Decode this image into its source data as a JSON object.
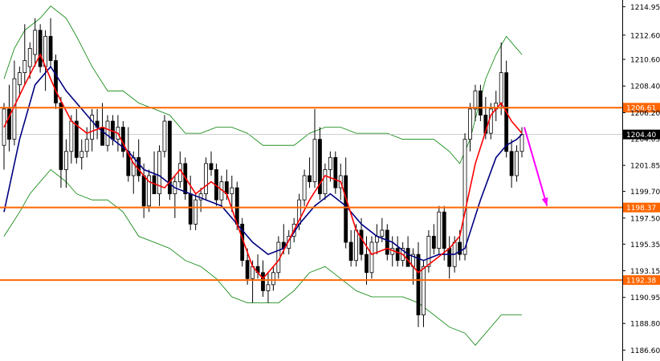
{
  "chart_data": {
    "type": "candlestick",
    "y_axis": {
      "position": "right",
      "ylim": [
        1185.7,
        1215.5
      ],
      "ticks": [
        1214.95,
        1212.6,
        1210.6,
        1208.4,
        1206.2,
        1204.05,
        1201.85,
        1199.7,
        1197.5,
        1195.35,
        1193.15,
        1190.95,
        1188.8,
        1186.6
      ],
      "tick_labels": [
        "1214.95",
        "1212.60",
        "1210.60",
        "1208.40",
        "1206.20",
        "1204.05",
        "1201.85",
        "1199.70",
        "1197.50",
        "1195.35",
        "1193.15",
        "1190.95",
        "1188.80",
        "1186.60"
      ]
    },
    "levels": [
      {
        "value": 1206.61,
        "label": "1206.61",
        "color": "#ff6600"
      },
      {
        "value": 1198.37,
        "label": "1198.37",
        "color": "#ff6600"
      },
      {
        "value": 1192.38,
        "label": "1192.38",
        "color": "#ff6600"
      }
    ],
    "current_price": {
      "value": 1204.4,
      "label": "1204.40",
      "line_color": "#c0c0c0",
      "box_color": "#000000"
    },
    "grid": false,
    "colors": {
      "bull": "#ffffff",
      "bear": "#000000",
      "outline": "#000000",
      "fast_ma": "#ff0000",
      "slow_ma": "#000080",
      "bands": "#008000",
      "arrow": "#ff00ff"
    },
    "candles": [
      [
        1203.5,
        1207.0,
        1201.5,
        1206.5
      ],
      [
        1206.5,
        1208.5,
        1203.0,
        1204.0
      ],
      [
        1204.0,
        1210.5,
        1203.5,
        1209.0
      ],
      [
        1208.5,
        1210.0,
        1207.5,
        1209.5
      ],
      [
        1209.5,
        1213.5,
        1208.5,
        1210.5
      ],
      [
        1210.0,
        1212.0,
        1209.0,
        1211.5
      ],
      [
        1211.0,
        1214.0,
        1210.0,
        1213.0
      ],
      [
        1213.0,
        1213.5,
        1209.5,
        1210.0
      ],
      [
        1210.0,
        1213.0,
        1208.0,
        1212.5
      ],
      [
        1212.5,
        1214.0,
        1210.0,
        1210.5
      ],
      [
        1210.5,
        1211.0,
        1206.5,
        1207.0
      ],
      [
        1207.0,
        1207.5,
        1200.0,
        1201.5
      ],
      [
        1201.5,
        1204.0,
        1200.0,
        1203.0
      ],
      [
        1203.0,
        1206.0,
        1202.0,
        1205.5
      ],
      [
        1205.5,
        1206.5,
        1202.0,
        1202.5
      ],
      [
        1202.5,
        1204.0,
        1201.5,
        1203.0
      ],
      [
        1203.0,
        1205.0,
        1202.5,
        1204.0
      ],
      [
        1204.0,
        1206.5,
        1203.0,
        1206.0
      ],
      [
        1205.5,
        1206.5,
        1204.0,
        1205.0
      ],
      [
        1205.0,
        1207.0,
        1203.5,
        1203.5
      ],
      [
        1203.5,
        1206.0,
        1203.0,
        1205.5
      ],
      [
        1205.5,
        1206.0,
        1203.5,
        1204.0
      ],
      [
        1204.0,
        1206.0,
        1203.0,
        1205.0
      ],
      [
        1205.0,
        1205.5,
        1202.5,
        1203.0
      ],
      [
        1203.0,
        1205.0,
        1200.5,
        1201.0
      ],
      [
        1201.0,
        1203.0,
        1199.5,
        1202.5
      ],
      [
        1202.5,
        1204.0,
        1200.5,
        1201.0
      ],
      [
        1201.0,
        1202.0,
        1197.5,
        1198.5
      ],
      [
        1198.5,
        1201.5,
        1198.0,
        1201.0
      ],
      [
        1201.0,
        1203.0,
        1199.5,
        1199.5
      ],
      [
        1199.5,
        1203.5,
        1198.5,
        1203.0
      ],
      [
        1203.0,
        1206.0,
        1202.5,
        1205.5
      ],
      [
        1205.5,
        1205.5,
        1199.0,
        1199.5
      ],
      [
        1199.5,
        1201.0,
        1197.5,
        1200.5
      ],
      [
        1200.5,
        1203.0,
        1200.0,
        1202.0
      ],
      [
        1202.0,
        1202.5,
        1199.0,
        1199.5
      ],
      [
        1199.5,
        1201.0,
        1196.5,
        1197.0
      ],
      [
        1197.0,
        1199.5,
        1196.5,
        1199.0
      ],
      [
        1199.0,
        1200.0,
        1198.0,
        1199.5
      ],
      [
        1199.5,
        1202.5,
        1199.0,
        1202.0
      ],
      [
        1202.0,
        1203.0,
        1201.0,
        1201.5
      ],
      [
        1201.5,
        1202.0,
        1198.5,
        1199.0
      ],
      [
        1199.0,
        1201.0,
        1198.5,
        1200.5
      ],
      [
        1200.5,
        1201.5,
        1199.0,
        1199.5
      ],
      [
        1199.5,
        1201.0,
        1198.0,
        1200.0
      ],
      [
        1200.0,
        1200.5,
        1196.5,
        1197.0
      ],
      [
        1197.0,
        1197.5,
        1193.5,
        1194.0
      ],
      [
        1194.0,
        1195.0,
        1192.0,
        1192.5
      ],
      [
        1192.5,
        1194.0,
        1190.5,
        1193.5
      ],
      [
        1193.5,
        1194.5,
        1192.5,
        1193.0
      ],
      [
        1193.0,
        1194.0,
        1191.0,
        1191.5
      ],
      [
        1191.5,
        1193.0,
        1190.5,
        1192.0
      ],
      [
        1192.0,
        1193.5,
        1191.5,
        1193.0
      ],
      [
        1193.0,
        1196.0,
        1192.5,
        1195.5
      ],
      [
        1195.5,
        1197.0,
        1194.5,
        1195.0
      ],
      [
        1195.0,
        1196.5,
        1194.5,
        1196.0
      ],
      [
        1196.0,
        1197.5,
        1195.5,
        1197.0
      ],
      [
        1197.0,
        1199.5,
        1196.5,
        1199.0
      ],
      [
        1199.0,
        1201.5,
        1198.5,
        1201.0
      ],
      [
        1201.0,
        1202.5,
        1200.0,
        1200.5
      ],
      [
        1200.5,
        1206.5,
        1200.0,
        1204.0
      ],
      [
        1204.0,
        1205.0,
        1199.0,
        1199.5
      ],
      [
        1199.5,
        1202.0,
        1199.0,
        1201.5
      ],
      [
        1201.5,
        1203.0,
        1200.5,
        1202.5
      ],
      [
        1202.5,
        1203.0,
        1199.5,
        1200.0
      ],
      [
        1200.0,
        1202.0,
        1199.0,
        1201.0
      ],
      [
        1201.0,
        1202.5,
        1195.0,
        1195.5
      ],
      [
        1195.5,
        1196.5,
        1193.5,
        1194.0
      ],
      [
        1194.0,
        1197.0,
        1193.5,
        1196.5
      ],
      [
        1196.5,
        1197.5,
        1194.0,
        1194.5
      ],
      [
        1194.5,
        1196.0,
        1192.0,
        1193.0
      ],
      [
        1193.0,
        1196.0,
        1192.5,
        1195.5
      ],
      [
        1195.5,
        1197.0,
        1194.5,
        1196.0
      ],
      [
        1196.0,
        1197.5,
        1195.5,
        1196.5
      ],
      [
        1196.5,
        1197.0,
        1194.0,
        1194.5
      ],
      [
        1194.5,
        1196.0,
        1193.5,
        1195.0
      ],
      [
        1195.0,
        1196.0,
        1193.5,
        1194.0
      ],
      [
        1194.0,
        1195.5,
        1193.5,
        1195.0
      ],
      [
        1195.0,
        1196.0,
        1193.5,
        1193.5
      ],
      [
        1193.5,
        1195.0,
        1192.0,
        1194.5
      ],
      [
        1194.5,
        1195.5,
        1188.5,
        1189.5
      ],
      [
        1189.5,
        1194.0,
        1188.5,
        1193.5
      ],
      [
        1193.5,
        1196.5,
        1193.0,
        1196.0
      ],
      [
        1196.0,
        1197.0,
        1194.5,
        1195.0
      ],
      [
        1195.0,
        1198.5,
        1194.5,
        1198.0
      ],
      [
        1198.0,
        1198.5,
        1194.0,
        1195.0
      ],
      [
        1195.0,
        1196.0,
        1192.5,
        1193.5
      ],
      [
        1193.5,
        1196.0,
        1193.0,
        1195.5
      ],
      [
        1195.5,
        1196.5,
        1194.0,
        1194.5
      ],
      [
        1194.5,
        1204.5,
        1194.0,
        1204.0
      ],
      [
        1204.0,
        1207.0,
        1203.0,
        1206.5
      ],
      [
        1206.5,
        1208.5,
        1205.5,
        1208.0
      ],
      [
        1208.0,
        1208.5,
        1205.5,
        1206.0
      ],
      [
        1206.0,
        1207.5,
        1204.0,
        1204.5
      ],
      [
        1204.5,
        1207.0,
        1204.0,
        1206.5
      ],
      [
        1206.5,
        1208.0,
        1205.5,
        1207.0
      ],
      [
        1207.0,
        1212.0,
        1206.0,
        1209.5
      ],
      [
        1209.5,
        1210.5,
        1202.5,
        1203.0
      ],
      [
        1203.0,
        1204.0,
        1200.0,
        1201.0
      ],
      [
        1201.0,
        1203.5,
        1200.5,
        1203.0
      ],
      [
        1203.0,
        1205.0,
        1202.5,
        1204.4
      ]
    ],
    "fast_ma": [
      [
        0,
        1205.0
      ],
      [
        4,
        1208.5
      ],
      [
        7,
        1211.0
      ],
      [
        10,
        1208.0
      ],
      [
        13,
        1205.5
      ],
      [
        16,
        1204.5
      ],
      [
        19,
        1205.0
      ],
      [
        22,
        1204.5
      ],
      [
        25,
        1202.0
      ],
      [
        28,
        1200.5
      ],
      [
        31,
        1200.0
      ],
      [
        34,
        1201.5
      ],
      [
        37,
        1199.5
      ],
      [
        40,
        1200.5
      ],
      [
        43,
        1199.5
      ],
      [
        45,
        1197.0
      ],
      [
        48,
        1193.5
      ],
      [
        50,
        1192.5
      ],
      [
        53,
        1194.0
      ],
      [
        56,
        1196.5
      ],
      [
        59,
        1199.0
      ],
      [
        62,
        1201.0
      ],
      [
        65,
        1200.5
      ],
      [
        68,
        1196.5
      ],
      [
        71,
        1194.5
      ],
      [
        74,
        1195.0
      ],
      [
        77,
        1194.5
      ],
      [
        80,
        1193.0
      ],
      [
        83,
        1194.0
      ],
      [
        86,
        1195.0
      ],
      [
        88,
        1196.0
      ],
      [
        91,
        1202.0
      ],
      [
        94,
        1206.0
      ],
      [
        96,
        1207.0
      ],
      [
        98,
        1205.5
      ],
      [
        100,
        1204.5
      ]
    ],
    "slow_ma": [
      [
        0,
        1198.0
      ],
      [
        3,
        1204.0
      ],
      [
        6,
        1208.5
      ],
      [
        9,
        1210.0
      ],
      [
        12,
        1208.0
      ],
      [
        15,
        1206.5
      ],
      [
        18,
        1205.0
      ],
      [
        21,
        1204.0
      ],
      [
        24,
        1203.0
      ],
      [
        27,
        1201.5
      ],
      [
        30,
        1201.0
      ],
      [
        33,
        1200.0
      ],
      [
        36,
        1199.5
      ],
      [
        39,
        1199.0
      ],
      [
        42,
        1198.5
      ],
      [
        45,
        1197.0
      ],
      [
        48,
        1195.5
      ],
      [
        51,
        1194.5
      ],
      [
        54,
        1195.0
      ],
      [
        57,
        1197.0
      ],
      [
        60,
        1198.5
      ],
      [
        63,
        1199.5
      ],
      [
        66,
        1198.5
      ],
      [
        69,
        1197.0
      ],
      [
        72,
        1196.0
      ],
      [
        75,
        1195.5
      ],
      [
        78,
        1194.5
      ],
      [
        81,
        1194.0
      ],
      [
        84,
        1194.5
      ],
      [
        87,
        1194.5
      ],
      [
        89,
        1195.0
      ],
      [
        92,
        1199.0
      ],
      [
        95,
        1202.5
      ],
      [
        97,
        1203.5
      ],
      [
        99,
        1204.0
      ],
      [
        100,
        1204.4
      ]
    ],
    "band_upper": [
      [
        0,
        1209.0
      ],
      [
        2,
        1211.5
      ],
      [
        4,
        1213.0
      ],
      [
        7,
        1214.0
      ],
      [
        9,
        1215.0
      ],
      [
        12,
        1214.0
      ],
      [
        14,
        1212.5
      ],
      [
        17,
        1210.0
      ],
      [
        20,
        1208.0
      ],
      [
        23,
        1208.0
      ],
      [
        26,
        1207.0
      ],
      [
        29,
        1206.5
      ],
      [
        32,
        1206.0
      ],
      [
        35,
        1204.5
      ],
      [
        38,
        1204.5
      ],
      [
        41,
        1205.0
      ],
      [
        44,
        1205.0
      ],
      [
        47,
        1204.5
      ],
      [
        50,
        1203.5
      ],
      [
        53,
        1203.5
      ],
      [
        56,
        1203.5
      ],
      [
        59,
        1204.5
      ],
      [
        62,
        1205.0
      ],
      [
        65,
        1205.0
      ],
      [
        68,
        1204.5
      ],
      [
        71,
        1204.5
      ],
      [
        74,
        1204.5
      ],
      [
        77,
        1204.0
      ],
      [
        80,
        1204.0
      ],
      [
        83,
        1204.0
      ],
      [
        86,
        1203.0
      ],
      [
        88,
        1202.0
      ],
      [
        90,
        1204.0
      ],
      [
        93,
        1209.0
      ],
      [
        95,
        1211.0
      ],
      [
        97,
        1212.5
      ],
      [
        100,
        1211.0
      ]
    ],
    "band_lower": [
      [
        0,
        1196.0
      ],
      [
        3,
        1198.0
      ],
      [
        5,
        1199.5
      ],
      [
        7,
        1200.5
      ],
      [
        9,
        1201.5
      ],
      [
        12,
        1200.5
      ],
      [
        14,
        1199.5
      ],
      [
        17,
        1199.0
      ],
      [
        20,
        1199.0
      ],
      [
        23,
        1198.0
      ],
      [
        26,
        1196.0
      ],
      [
        29,
        1195.5
      ],
      [
        32,
        1195.0
      ],
      [
        35,
        1194.0
      ],
      [
        38,
        1193.5
      ],
      [
        41,
        1192.5
      ],
      [
        44,
        1191.0
      ],
      [
        47,
        1190.5
      ],
      [
        50,
        1190.5
      ],
      [
        53,
        1190.5
      ],
      [
        56,
        1191.5
      ],
      [
        59,
        1193.0
      ],
      [
        62,
        1193.5
      ],
      [
        65,
        1192.5
      ],
      [
        68,
        1191.5
      ],
      [
        71,
        1191.0
      ],
      [
        74,
        1191.0
      ],
      [
        77,
        1191.0
      ],
      [
        80,
        1190.5
      ],
      [
        83,
        1189.5
      ],
      [
        86,
        1188.5
      ],
      [
        89,
        1188.0
      ],
      [
        91,
        1187.0
      ],
      [
        93,
        1188.0
      ],
      [
        96,
        1189.5
      ],
      [
        100,
        1189.5
      ]
    ],
    "arrow": {
      "from": [
        100,
        1205.0
      ],
      "to": [
        103,
        1198.5
      ]
    }
  }
}
